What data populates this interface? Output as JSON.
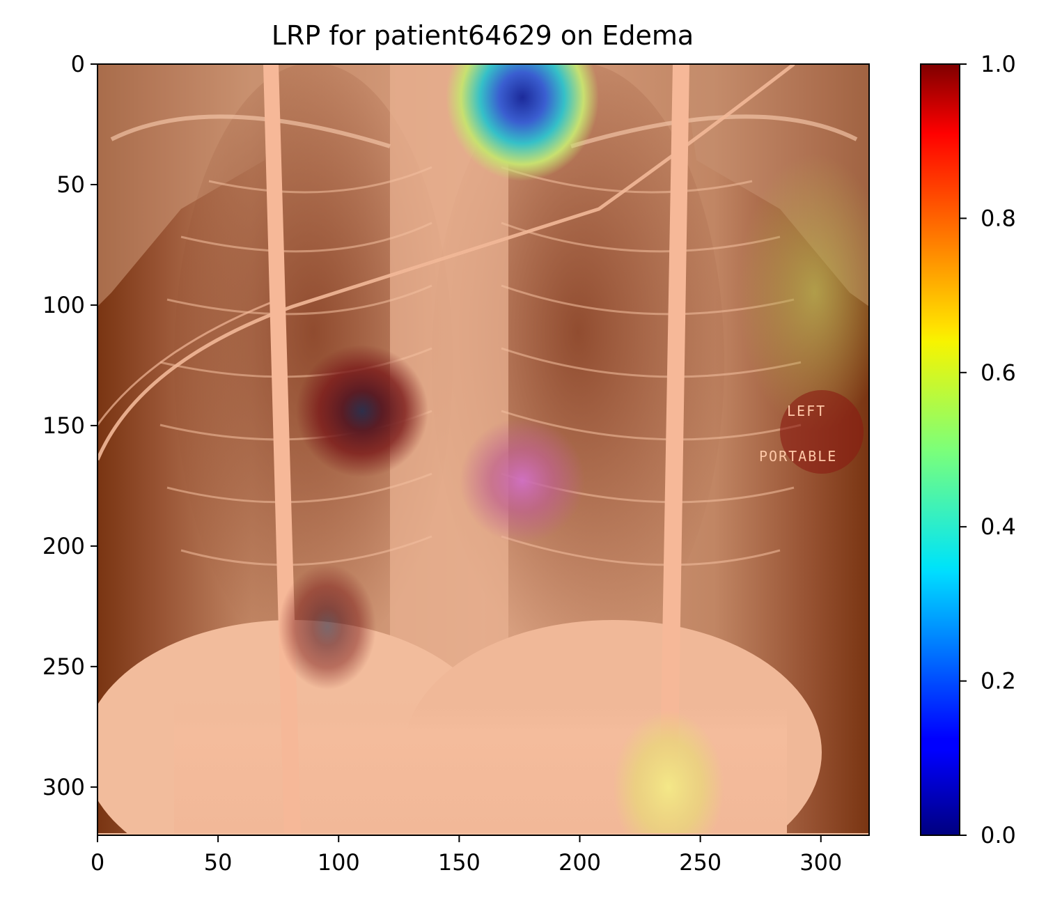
{
  "chart_data": {
    "type": "heatmap",
    "title": "LRP for patient64629 on Edema",
    "image_size": [
      320,
      320
    ],
    "xlim": [
      0,
      320
    ],
    "ylim": [
      320,
      0
    ],
    "x_ticks": [
      0,
      50,
      100,
      150,
      200,
      250,
      300
    ],
    "x_tick_labels": [
      "0",
      "50",
      "100",
      "150",
      "200",
      "250",
      "300"
    ],
    "y_ticks": [
      0,
      50,
      100,
      150,
      200,
      250,
      300
    ],
    "y_tick_labels": [
      "0",
      "50",
      "100",
      "150",
      "200",
      "250",
      "300"
    ],
    "colorbar": {
      "range": [
        0,
        1
      ],
      "ticks": [
        0.0,
        0.2,
        0.4,
        0.6,
        0.8,
        1.0
      ],
      "tick_labels": [
        "0.0",
        "0.2",
        "0.4",
        "0.6",
        "0.8",
        "1.0"
      ],
      "colormap": "jet"
    },
    "overlay_text": [
      "LEFT",
      "PORTABLE"
    ],
    "relevance_hotspots": [
      {
        "x": 175,
        "y": 10,
        "value": 0.1,
        "note": "blue spot"
      },
      {
        "x": 110,
        "y": 145,
        "value": 0.05,
        "note": "dark spot"
      },
      {
        "x": 180,
        "y": 175,
        "value": 0.9,
        "note": "magenta"
      },
      {
        "x": 238,
        "y": 310,
        "value": 0.62,
        "note": "yellow"
      },
      {
        "x": 295,
        "y": 90,
        "value": 0.62,
        "note": "yellow-green"
      }
    ]
  }
}
